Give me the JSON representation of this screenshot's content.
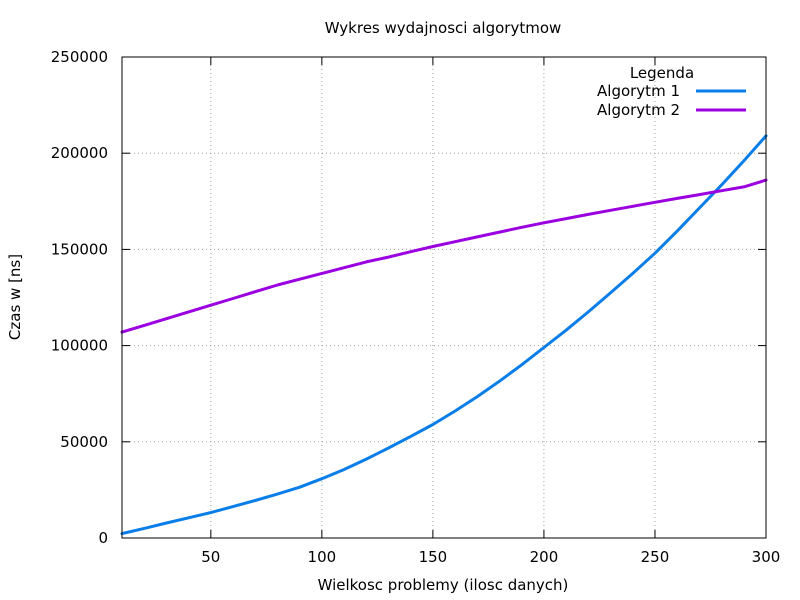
{
  "chart_data": {
    "type": "line",
    "title": "Wykres wydajnosci algorytmow",
    "xlabel": "Wielkosc problemy (ilosc danych)",
    "ylabel": "Czas w [ns]",
    "xlim": [
      10,
      300
    ],
    "ylim": [
      0,
      250000
    ],
    "x_ticks": [
      50,
      100,
      150,
      200,
      250,
      300
    ],
    "y_ticks": [
      0,
      50000,
      100000,
      150000,
      200000,
      250000
    ],
    "grid": true,
    "legend": {
      "title": "Legenda",
      "placement": "top-right"
    },
    "x": [
      10,
      20,
      30,
      40,
      50,
      60,
      70,
      80,
      90,
      100,
      110,
      120,
      130,
      140,
      150,
      160,
      170,
      180,
      190,
      200,
      210,
      220,
      230,
      240,
      250,
      260,
      270,
      280,
      290,
      300
    ],
    "series": [
      {
        "name": "Algorytm 1",
        "color": "#0a7ee8",
        "values": [
          2300,
          5000,
          7800,
          10500,
          13200,
          16300,
          19500,
          22800,
          26400,
          30800,
          35600,
          41000,
          46800,
          52800,
          59000,
          66000,
          73500,
          81500,
          90000,
          99000,
          108000,
          117500,
          127500,
          137500,
          148000,
          159500,
          171500,
          183500,
          196000,
          209000
        ]
      },
      {
        "name": "Algorytm 2",
        "color": "#9a00e0",
        "values": [
          107000,
          110500,
          114000,
          117500,
          121000,
          124500,
          128000,
          131500,
          134500,
          137500,
          140500,
          143500,
          146000,
          148800,
          151500,
          154000,
          156500,
          159000,
          161500,
          163800,
          166000,
          168200,
          170300,
          172400,
          174500,
          176500,
          178500,
          180500,
          182500,
          186000
        ]
      }
    ]
  }
}
